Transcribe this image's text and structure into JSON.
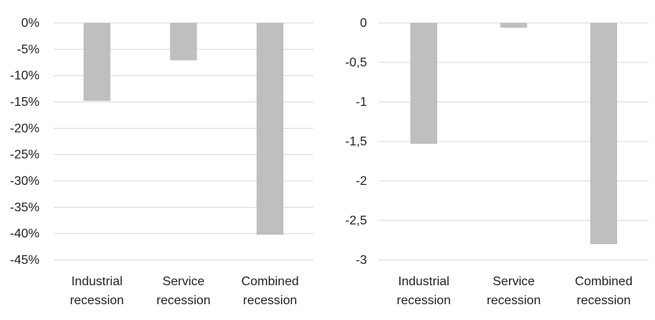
{
  "colors": {
    "bar": "#bfbfbf",
    "grid": "#d9d9d9",
    "text": "#222222"
  },
  "chart_data": [
    {
      "type": "bar",
      "categories": [
        "Industrial recession",
        "Service recession",
        "Combined recession"
      ],
      "category_lines": [
        [
          "Industrial",
          "recession"
        ],
        [
          "Service",
          "recession"
        ],
        [
          "Combined",
          "recession"
        ]
      ],
      "values": [
        -0.148,
        -0.071,
        -0.402
      ],
      "ylim": [
        -0.45,
        0
      ],
      "yticks": [
        0,
        -0.05,
        -0.1,
        -0.15,
        -0.2,
        -0.25,
        -0.3,
        -0.35,
        -0.4,
        -0.45
      ],
      "ytick_labels": [
        "0%",
        "-5%",
        "-10%",
        "-15%",
        "-20%",
        "-25%",
        "-30%",
        "-35%",
        "-40%",
        "-45%"
      ],
      "grid": true,
      "legend": "none"
    },
    {
      "type": "bar",
      "categories": [
        "Industrial recession",
        "Service recession",
        "Combined recession"
      ],
      "category_lines": [
        [
          "Industrial",
          "recession"
        ],
        [
          "Service",
          "recession"
        ],
        [
          "Combined",
          "recession"
        ]
      ],
      "values": [
        -1.53,
        -0.06,
        -2.8
      ],
      "ylim": [
        -3,
        0
      ],
      "yticks": [
        0,
        -0.5,
        -1,
        -1.5,
        -2,
        -2.5,
        -3
      ],
      "ytick_labels": [
        "0",
        "-0,5",
        "-1",
        "-1,5",
        "-2",
        "-2,5",
        "-3"
      ],
      "grid": true,
      "legend": "none"
    }
  ]
}
